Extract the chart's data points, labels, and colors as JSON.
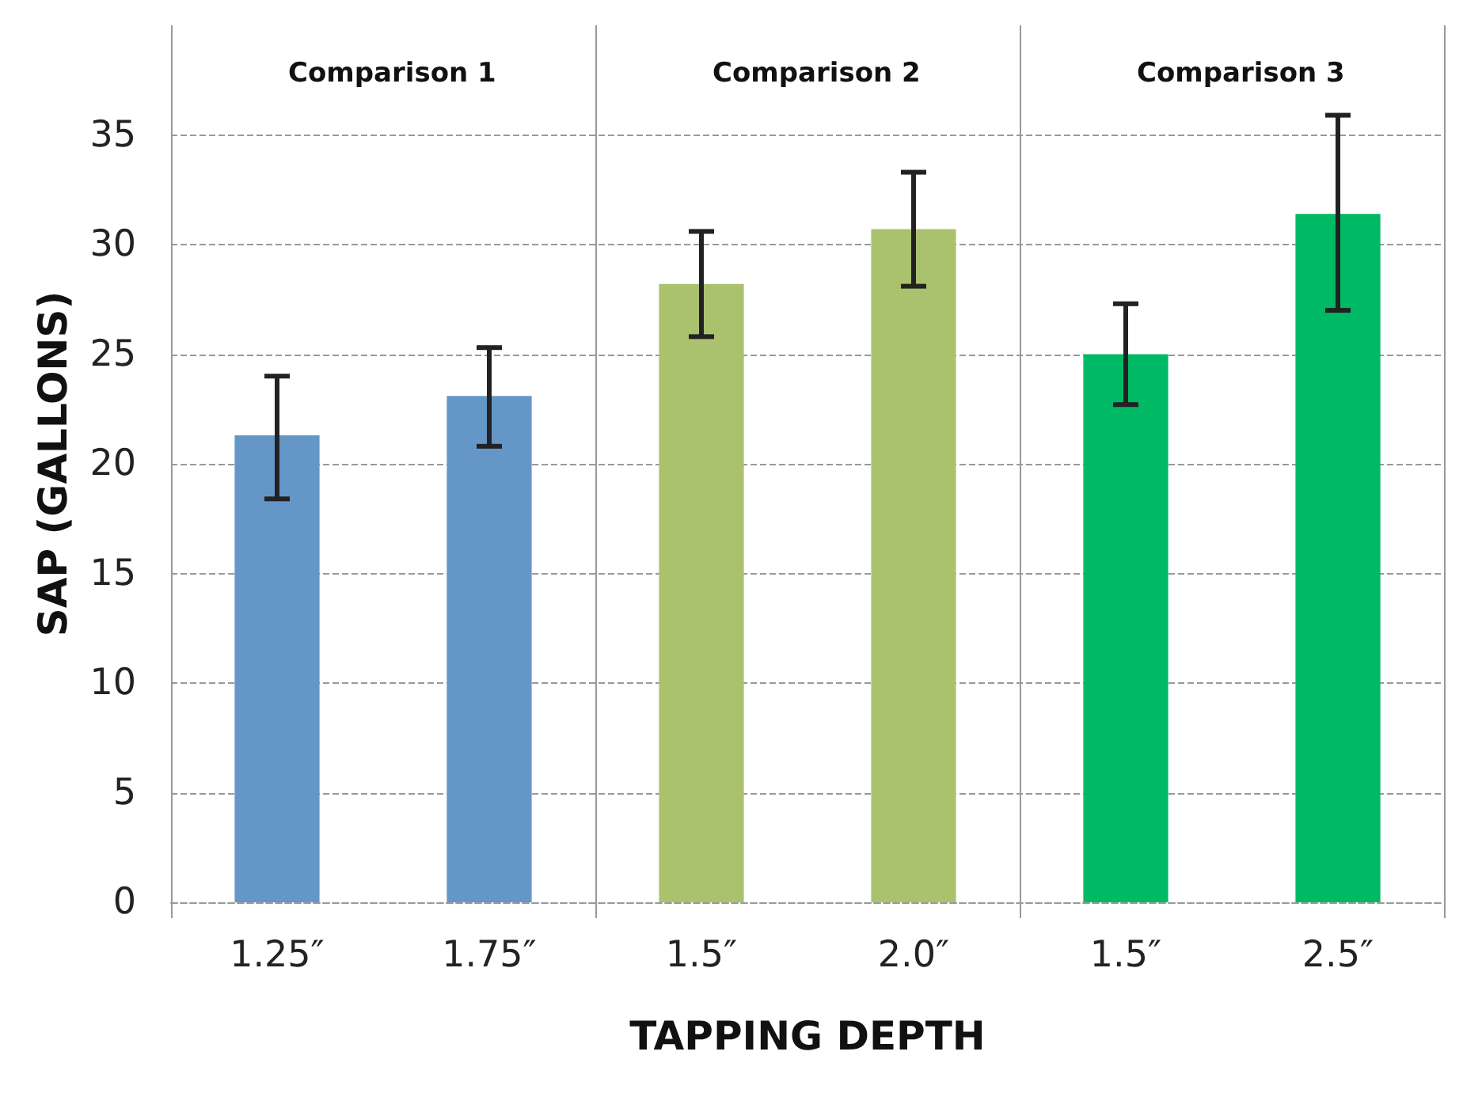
{
  "chart_data": {
    "type": "bar",
    "xlabel": "TAPPING DEPTH",
    "ylabel": "SAP (GALLONS)",
    "categories": [
      "1.25″",
      "1.75″",
      "1.5″",
      "2.0″",
      "1.5″",
      "2.5″"
    ],
    "values": [
      21.3,
      23.1,
      28.2,
      30.7,
      25.0,
      31.4
    ],
    "colors": [
      "#6497c8",
      "#6497c8",
      "#aac26e",
      "#aac26e",
      "#00b964",
      "#00b964"
    ],
    "errors": [
      [
        18.4,
        24.0
      ],
      [
        20.8,
        25.3
      ],
      [
        25.8,
        30.6
      ],
      [
        28.1,
        33.3
      ],
      [
        22.7,
        27.3
      ],
      [
        27.0,
        35.9
      ]
    ],
    "annotations": [
      "Comparison 1",
      "Comparison 2",
      "Comparison 3"
    ],
    "ylim": [
      0,
      40
    ],
    "yticks": [
      0,
      5,
      10,
      15,
      20,
      25,
      30,
      35
    ],
    "grid": "y"
  }
}
